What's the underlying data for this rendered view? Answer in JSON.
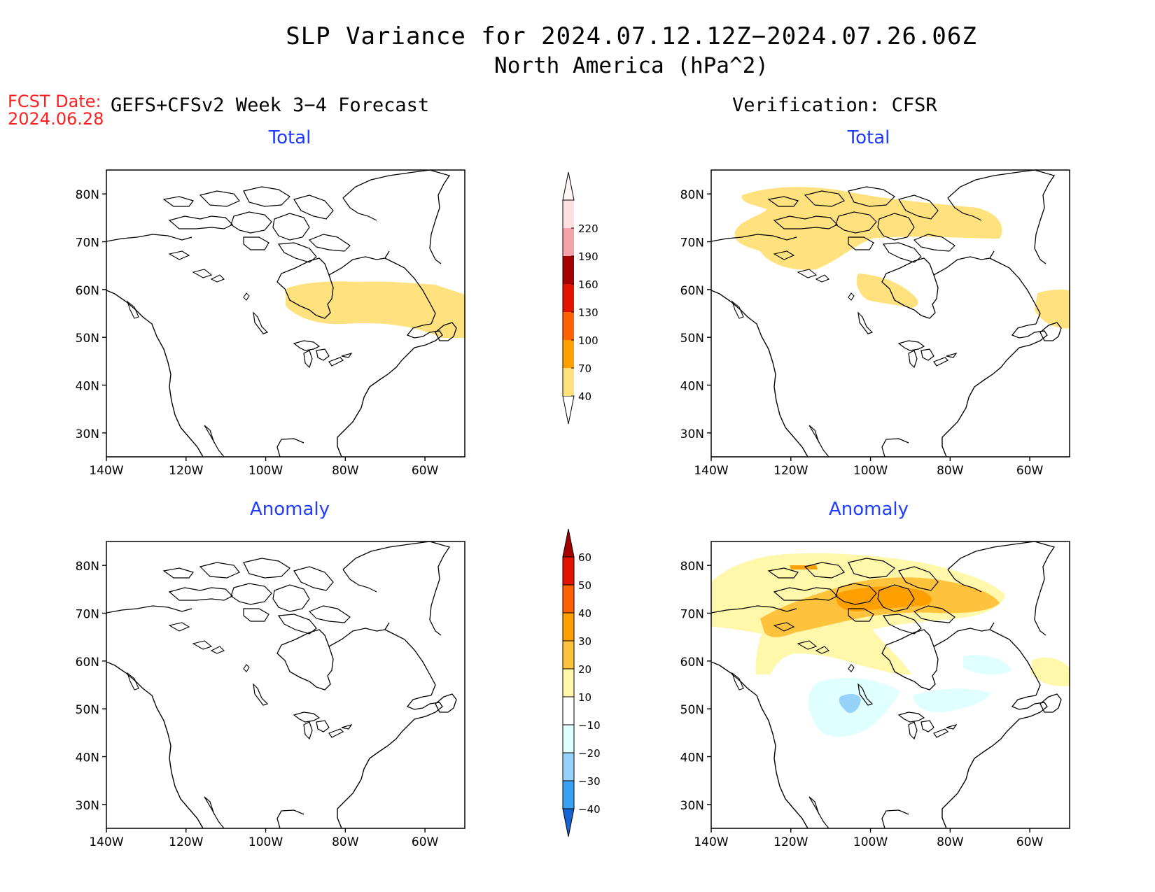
{
  "header": {
    "title": "SLP Variance for 2024.07.12.12Z−2024.07.26.06Z",
    "subtitle": "North America (hPa^2)",
    "fcst_label": "FCST Date:",
    "fcst_date": "2024.06.28",
    "left_column": "GEFS+CFSv2 Week 3−4 Forecast",
    "right_column": "Verification: CFSR"
  },
  "panels": {
    "forecast_total": {
      "label": "Total"
    },
    "verification_total": {
      "label": "Total"
    },
    "forecast_anomaly": {
      "label": "Anomaly"
    },
    "verification_anomaly": {
      "label": "Anomaly"
    }
  },
  "axes": {
    "lat_ticks": [
      "80N",
      "70N",
      "60N",
      "50N",
      "40N",
      "30N"
    ],
    "lon_ticks": [
      "140W",
      "120W",
      "100W",
      "80W",
      "60W"
    ],
    "lat_range": [
      25,
      85
    ],
    "lon_range": [
      -140,
      -50
    ]
  },
  "colorbars": {
    "total": {
      "levels": [
        "40",
        "70",
        "100",
        "130",
        "160",
        "190",
        "220"
      ],
      "colors": [
        "#ffe27d",
        "#ffa000",
        "#ff6200",
        "#e11400",
        "#a50000",
        "#f4a3a8",
        "#fde0df"
      ]
    },
    "anomaly": {
      "levels": [
        "60",
        "50",
        "40",
        "30",
        "20",
        "10",
        "−10",
        "−20",
        "−30",
        "−40"
      ],
      "colors": [
        "#a50000",
        "#e11400",
        "#ff6200",
        "#ffa000",
        "#ffc23c",
        "#fff7aa",
        "#ffffff",
        "#e0ffff",
        "#96d2fa",
        "#3ca0f0",
        "#1464d2"
      ]
    }
  }
}
